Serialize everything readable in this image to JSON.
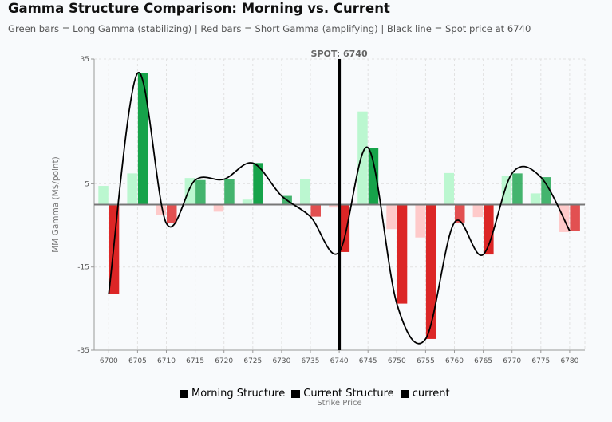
{
  "title": "Gamma Structure Comparison: Morning vs. Current",
  "subtitle": "Green bars = Long Gamma (stabilizing) | Red bars = Short Gamma (amplifying) | Black line = Spot price at 6740",
  "chart_data": {
    "type": "bar",
    "title": "Gamma Structure Comparison: Morning vs. Current",
    "xlabel": "Strike Price",
    "ylabel": "MM Gamma (M$/point)",
    "ylim": [
      -35,
      35
    ],
    "yticks": [
      "35",
      "5",
      "-15",
      "-35"
    ],
    "grid": true,
    "categories": [
      "6700",
      "6705",
      "6710",
      "6715",
      "6720",
      "6725",
      "6730",
      "6735",
      "6740",
      "6745",
      "6750",
      "6755",
      "6760",
      "6765",
      "6770",
      "6775",
      "6780"
    ],
    "series": [
      {
        "name": "Morning Structure",
        "values": [
          4.5,
          7.5,
          -2.5,
          6.4,
          -1.7,
          1.2,
          0,
          6.2,
          -0.7,
          22.4,
          -5.9,
          -7.9,
          7.6,
          -3.0,
          6.9,
          2.7,
          -6.6
        ]
      },
      {
        "name": "Current Structure",
        "values": [
          -21.4,
          31.6,
          -4.5,
          5.9,
          6.1,
          10.0,
          2.1,
          -2.9,
          -11.4,
          13.7,
          -23.8,
          -32.3,
          -4.3,
          -12.0,
          7.5,
          6.6,
          -6.3
        ]
      },
      {
        "name": "current",
        "type": "line",
        "values": [
          -21.4,
          31.6,
          -4.5,
          5.9,
          6.1,
          10.0,
          2.1,
          -2.9,
          -11.4,
          13.7,
          -23.8,
          -32.3,
          -4.3,
          -12.0,
          7.5,
          6.6,
          -6.3
        ]
      }
    ],
    "spot": {
      "value": 6740,
      "label": "SPOT: 6740"
    },
    "legend_position": "bottom",
    "colors": {
      "pos_light": "#bbf7d0",
      "neg_light": "#fecaca",
      "pos": "#16a34a",
      "neg": "#dc2626",
      "line": "#000000"
    }
  }
}
